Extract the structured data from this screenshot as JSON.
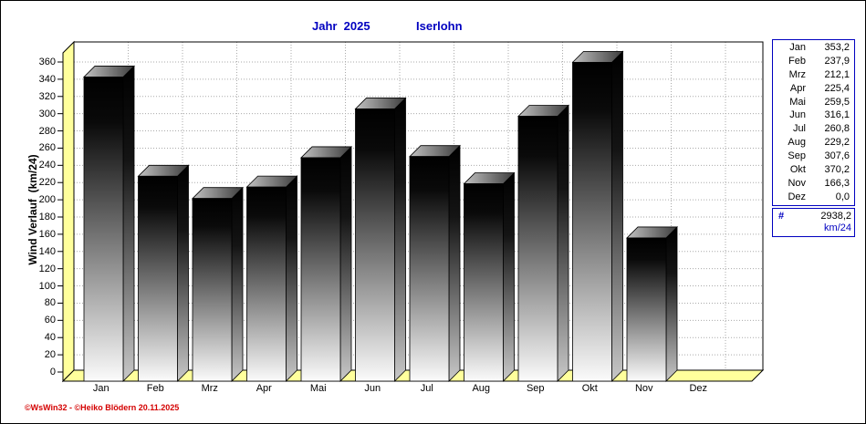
{
  "header": {
    "year": "Jahr  2025",
    "station": "Iserlohn"
  },
  "y_axis": {
    "label": "Wind Verlauf  (km/24)",
    "min": 0,
    "max": 360,
    "step": 20
  },
  "footer": {
    "credit": "©WsWin32 -  ©Heiko Blödern  20.11.2025"
  },
  "legend": {
    "rows": [
      [
        "Jan",
        "353,2"
      ],
      [
        "Feb",
        "237,9"
      ],
      [
        "Mrz",
        "212,1"
      ],
      [
        "Apr",
        "225,4"
      ],
      [
        "Mai",
        "259,5"
      ],
      [
        "Jun",
        "316,1"
      ],
      [
        "Jul",
        "260,8"
      ],
      [
        "Aug",
        "229,2"
      ],
      [
        "Sep",
        "307,6"
      ],
      [
        "Okt",
        "370,2"
      ],
      [
        "Nov",
        "166,3"
      ],
      [
        "Dez",
        "0,0"
      ]
    ],
    "total_symbol": "#",
    "total_value": "2938,2",
    "total_unit": "km/24"
  },
  "chart_data": {
    "type": "bar",
    "categories": [
      "Jan",
      "Feb",
      "Mrz",
      "Apr",
      "Mai",
      "Jun",
      "Jul",
      "Aug",
      "Sep",
      "Okt",
      "Nov",
      "Dez"
    ],
    "values": [
      353.2,
      237.9,
      212.1,
      225.4,
      259.5,
      316.1,
      260.8,
      229.2,
      307.6,
      370.2,
      166.3,
      0.0
    ],
    "title": "Jahr 2025 Iserlohn",
    "xlabel": "",
    "ylabel": "Wind Verlauf (km/24)",
    "ylim": [
      0,
      380
    ],
    "ytick_step": 20,
    "grid": true,
    "legend_position": "right",
    "total": "2938,2 km/24"
  },
  "colors": {
    "title": "#0000c0",
    "legend_border": "#0000c0",
    "wall": "#ffff9c",
    "grid": "#aaaaaa",
    "footer": "#d40000",
    "bar_dark": "#000000",
    "bar_light": "#fbfbfb"
  }
}
